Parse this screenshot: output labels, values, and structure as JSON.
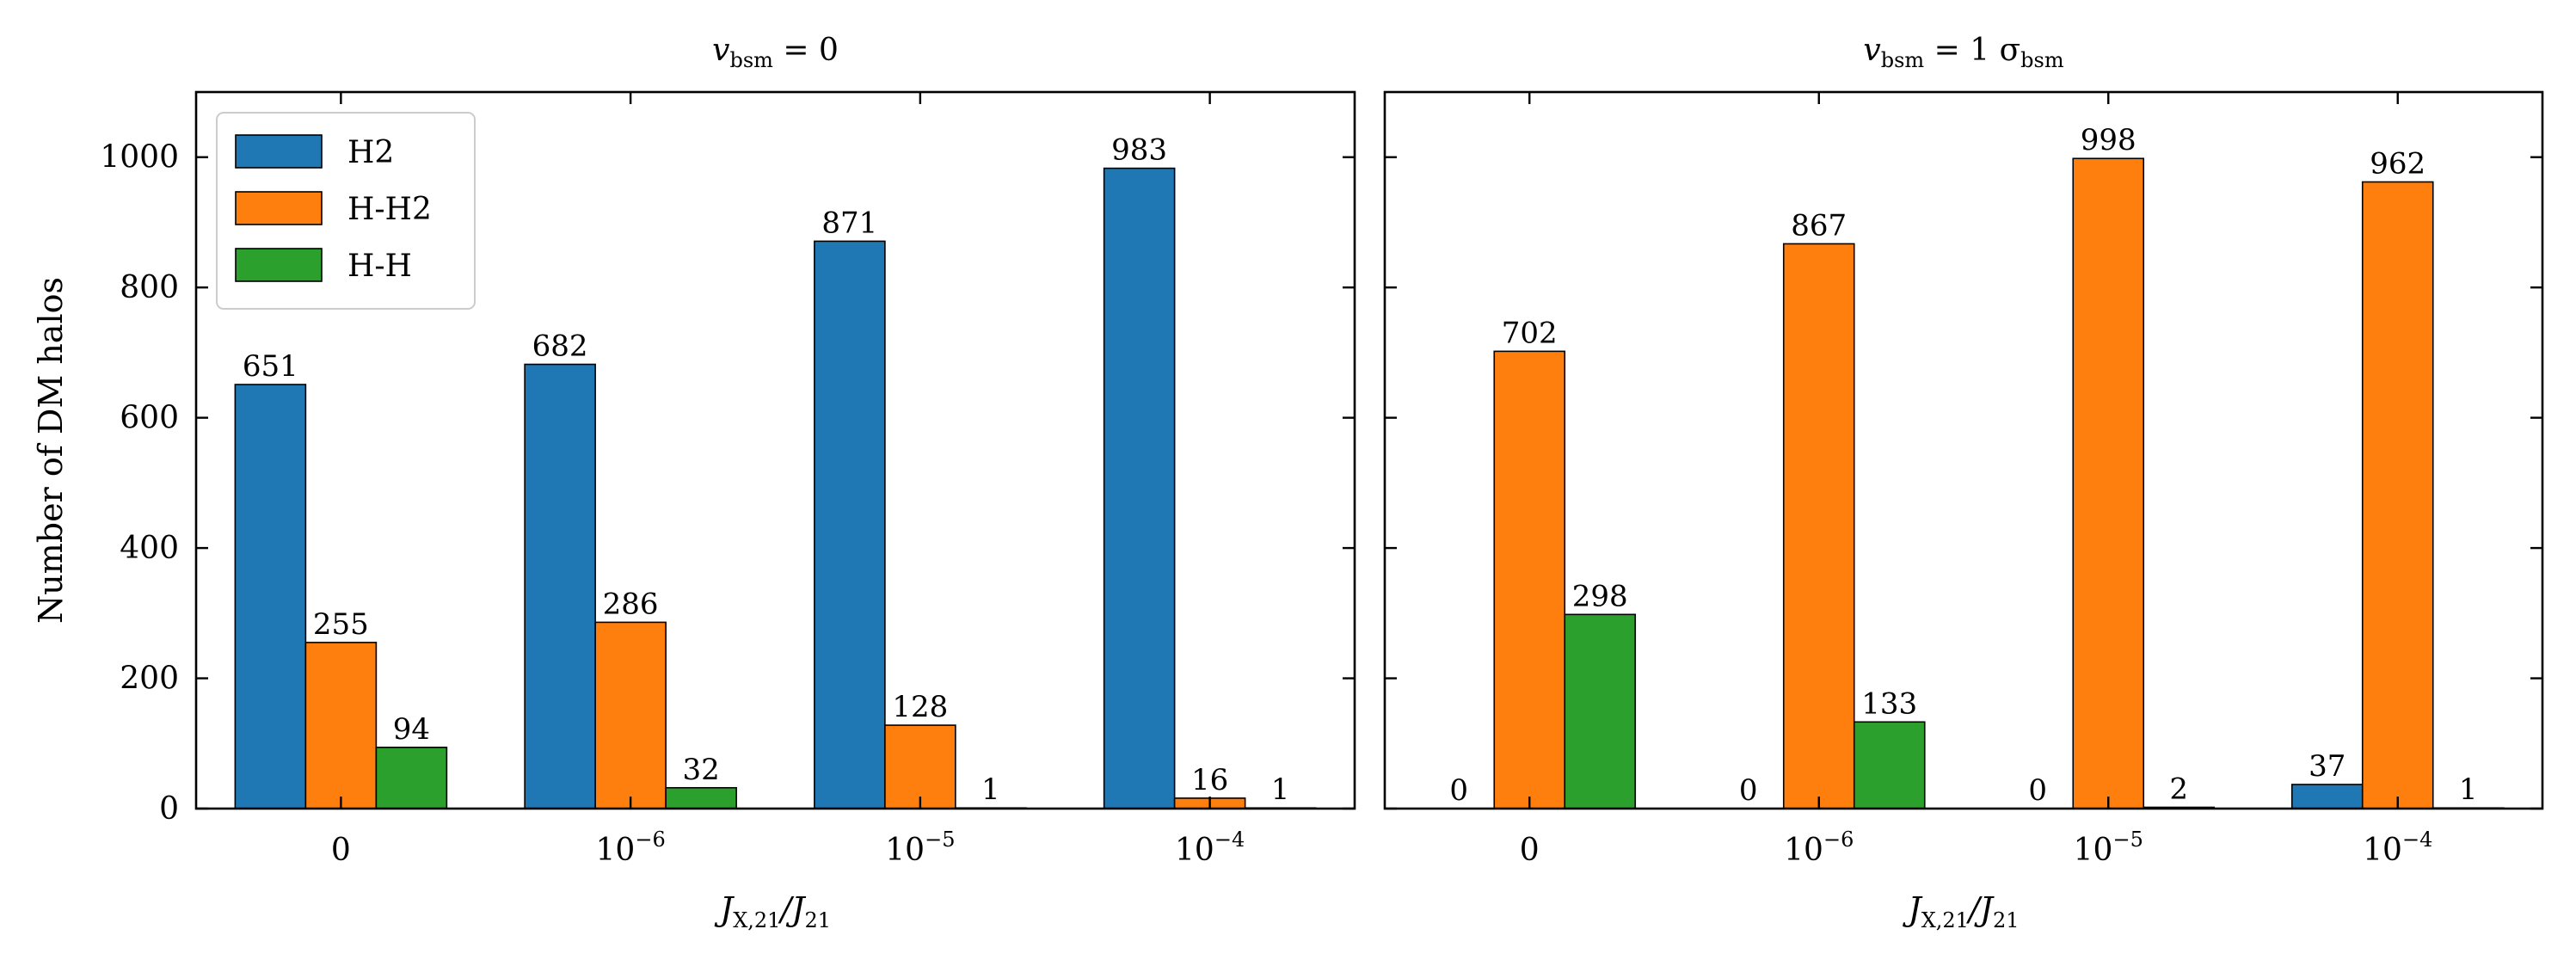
{
  "chart_data": [
    {
      "type": "bar",
      "title": {
        "main": "v",
        "sub": "bsm",
        "rest": " = 0"
      },
      "xlabel": {
        "main": "J",
        "sub": "X,21",
        "rest": "/J",
        "sub2": "21"
      },
      "ylabel": "Number of DM halos",
      "ylim": [
        0,
        1100
      ],
      "yticks": [
        "0",
        "200",
        "400",
        "600",
        "800",
        "1000"
      ],
      "categories": [
        {
          "base": "0",
          "exp": ""
        },
        {
          "base": "10",
          "exp": "−6"
        },
        {
          "base": "10",
          "exp": "−5"
        },
        {
          "base": "10",
          "exp": "−4"
        }
      ],
      "series": [
        {
          "name": "H2",
          "color": "#1f77b4",
          "values": [
            651,
            682,
            871,
            983
          ]
        },
        {
          "name": "H-H2",
          "color": "#ff7f0e",
          "values": [
            255,
            286,
            128,
            16
          ]
        },
        {
          "name": "H-H",
          "color": "#2ca02c",
          "values": [
            94,
            32,
            1,
            1
          ]
        }
      ],
      "value_labels": [
        [
          "651",
          "682",
          "871",
          "983"
        ],
        [
          "255",
          "286",
          "128",
          "16"
        ],
        [
          "94",
          "32",
          "1",
          "1"
        ]
      ],
      "legend": {
        "position": "top-left",
        "entries": [
          "H2",
          "H-H2",
          "H-H"
        ]
      }
    },
    {
      "type": "bar",
      "title": {
        "main": "v",
        "sub": "bsm",
        "rest": " = 1 σ",
        "sub2": "bsm"
      },
      "xlabel": {
        "main": "J",
        "sub": "X,21",
        "rest": "/J",
        "sub2": "21"
      },
      "ylim": [
        0,
        1100
      ],
      "categories": [
        {
          "base": "0",
          "exp": ""
        },
        {
          "base": "10",
          "exp": "−6"
        },
        {
          "base": "10",
          "exp": "−5"
        },
        {
          "base": "10",
          "exp": "−4"
        }
      ],
      "series": [
        {
          "name": "H2",
          "color": "#1f77b4",
          "values": [
            0,
            0,
            0,
            37
          ]
        },
        {
          "name": "H-H2",
          "color": "#ff7f0e",
          "values": [
            702,
            867,
            998,
            962
          ]
        },
        {
          "name": "H-H",
          "color": "#2ca02c",
          "values": [
            298,
            133,
            2,
            1
          ]
        }
      ],
      "value_labels": [
        [
          "0",
          "0",
          "0",
          "37"
        ],
        [
          "702",
          "867",
          "998",
          "962"
        ],
        [
          "298",
          "133",
          "2",
          "1"
        ]
      ]
    }
  ]
}
